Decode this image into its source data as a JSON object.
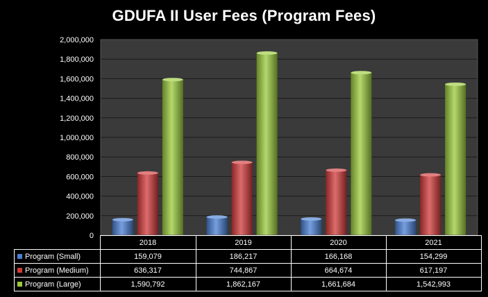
{
  "chart_data": {
    "type": "bar",
    "title": "GDUFA II User Fees (Program Fees)",
    "categories": [
      "2018",
      "2019",
      "2020",
      "2021"
    ],
    "series": [
      {
        "name": "Program (Small)",
        "values": [
          159079,
          186217,
          166168,
          154299
        ],
        "display_values": [
          "159,079",
          "186,217",
          "166,168",
          "154,299"
        ],
        "color": "#4a7fd4"
      },
      {
        "name": "Program (Medium)",
        "values": [
          636317,
          744867,
          664674,
          617197
        ],
        "display_values": [
          "636,317",
          "744,867",
          "664,674",
          "617,197"
        ],
        "color": "#d23a3a"
      },
      {
        "name": "Program (Large)",
        "values": [
          1590792,
          1862167,
          1661684,
          1542993
        ],
        "display_values": [
          "1,590,792",
          "1,862,167",
          "1,661,684",
          "1,542,993"
        ],
        "color": "#9bcb3c"
      }
    ],
    "ylim": [
      0,
      2000000
    ],
    "yticks": [
      "0",
      "200,000",
      "400,000",
      "600,000",
      "800,000",
      "1,000,000",
      "1,200,000",
      "1,400,000",
      "1,600,000",
      "1,800,000",
      "2,000,000"
    ],
    "grid": true,
    "legend": "data-table-below",
    "background": "#3a3a3a"
  }
}
